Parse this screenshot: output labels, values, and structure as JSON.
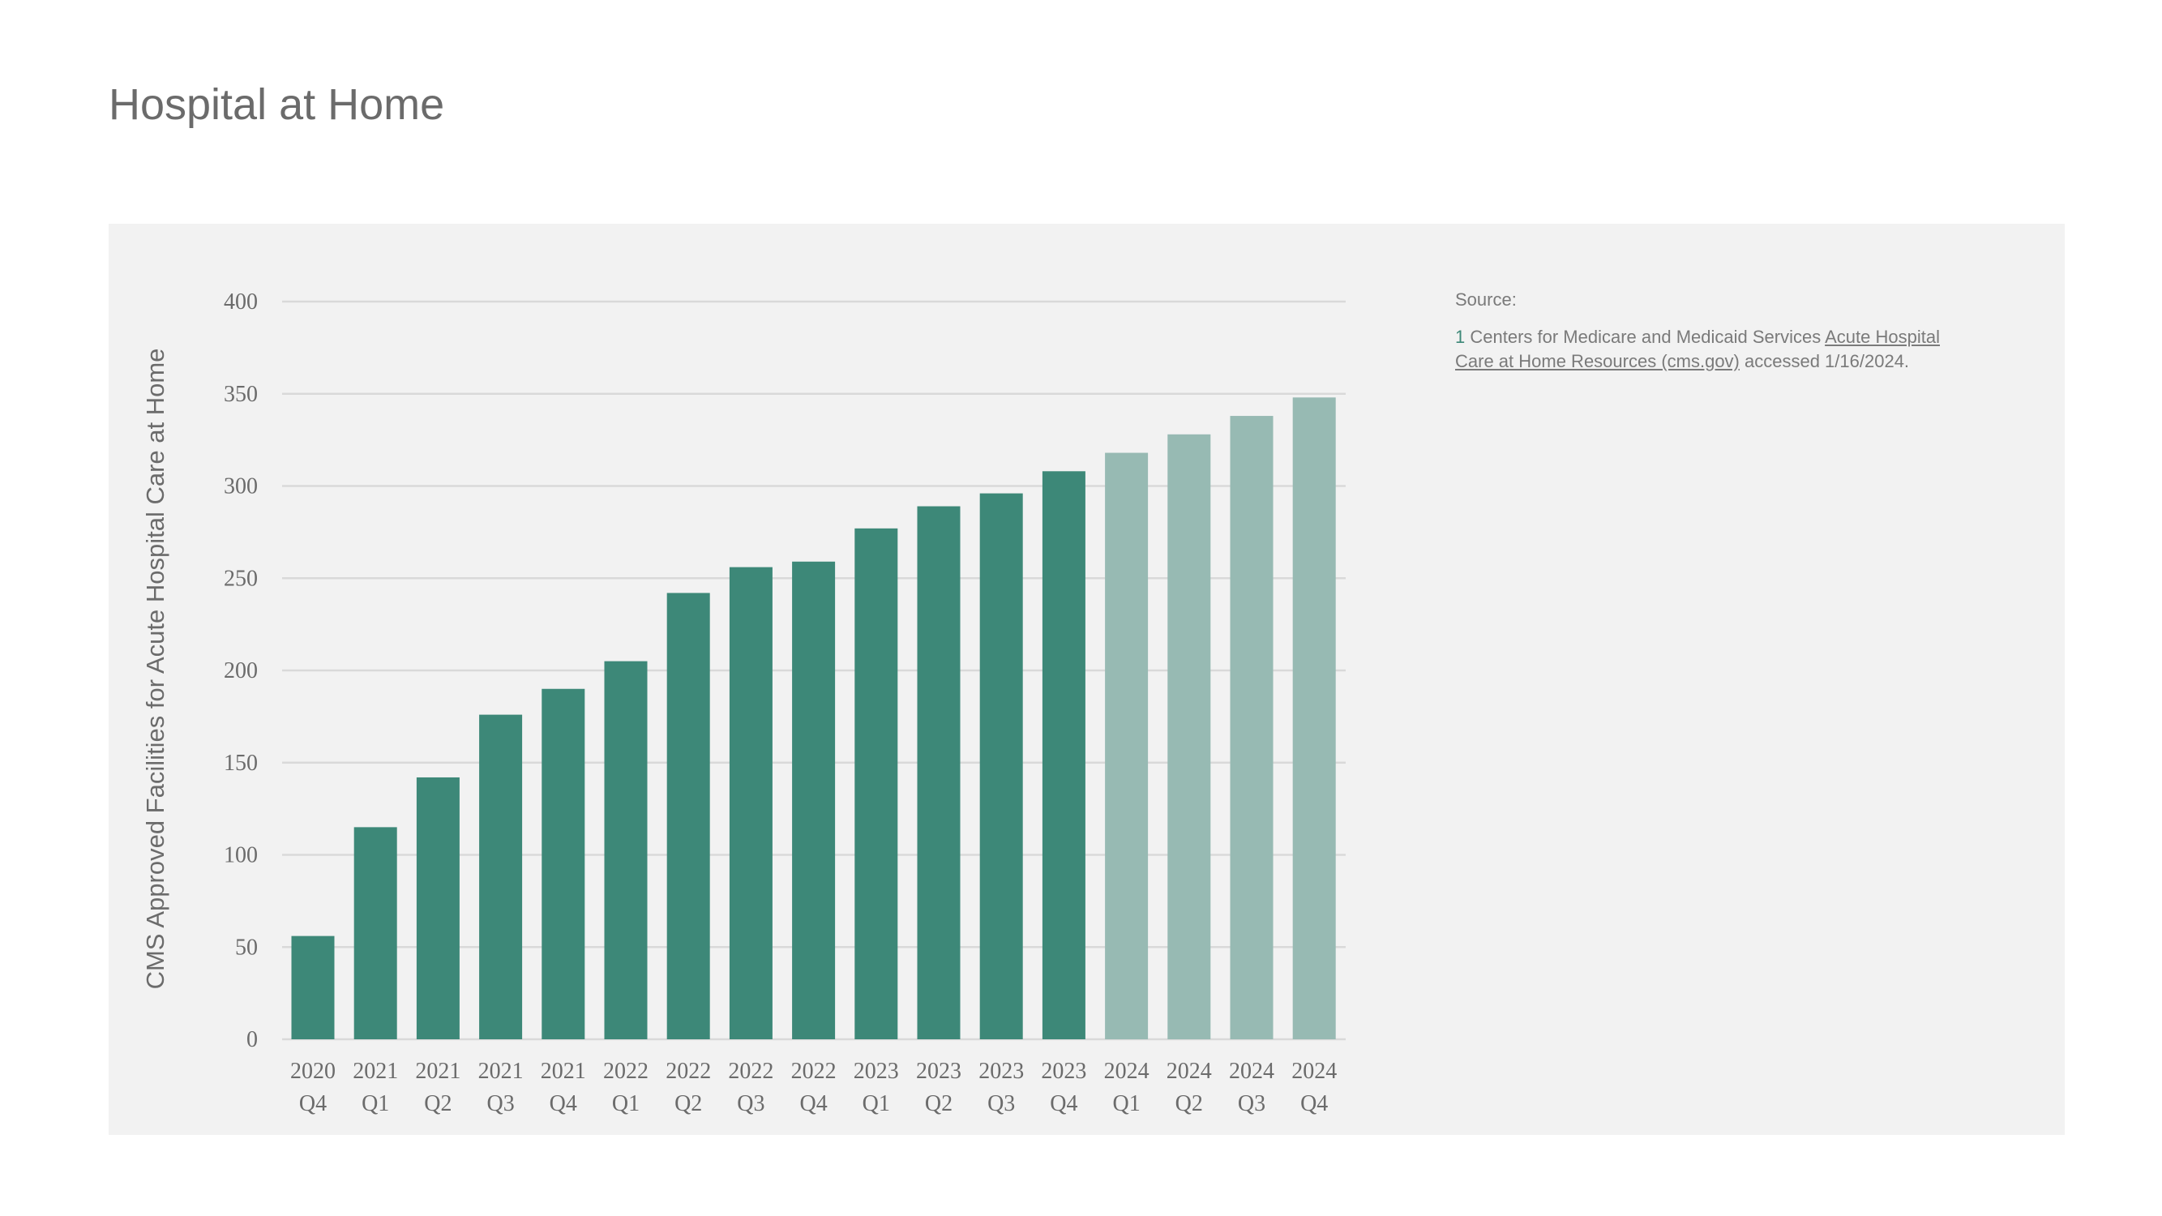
{
  "page": {
    "title": "Hospital at Home"
  },
  "source": {
    "label": "Source:",
    "footnote_number": "1",
    "text_before_link": " Centers for Medicare and Medicaid Services ",
    "link_text": "Acute Hospital Care at Home Resources (cms.gov)",
    "text_after_link": " accessed 1/16/2024."
  },
  "colors": {
    "actual": "#3d8878",
    "projected": "#97bab3",
    "grid": "#d9d9d9",
    "panel": "#f2f2f2"
  },
  "chart_data": {
    "type": "bar",
    "ylabel": "CMS Approved Facilities for Acute Hospital Care at Home",
    "xlabel": "",
    "ylim": [
      0,
      400
    ],
    "yticks": [
      0,
      50,
      100,
      150,
      200,
      250,
      300,
      350,
      400
    ],
    "grid": true,
    "categories": [
      [
        "2020",
        "Q4"
      ],
      [
        "2021",
        "Q1"
      ],
      [
        "2021",
        "Q2"
      ],
      [
        "2021",
        "Q3"
      ],
      [
        "2021",
        "Q4"
      ],
      [
        "2022",
        "Q1"
      ],
      [
        "2022",
        "Q2"
      ],
      [
        "2022",
        "Q3"
      ],
      [
        "2022",
        "Q4"
      ],
      [
        "2023",
        "Q1"
      ],
      [
        "2023",
        "Q2"
      ],
      [
        "2023",
        "Q3"
      ],
      [
        "2023",
        "Q4"
      ],
      [
        "2024",
        "Q1"
      ],
      [
        "2024",
        "Q2"
      ],
      [
        "2024",
        "Q3"
      ],
      [
        "2024",
        "Q4"
      ]
    ],
    "values": [
      56,
      115,
      142,
      176,
      190,
      205,
      242,
      256,
      259,
      277,
      289,
      296,
      308,
      318,
      328,
      338,
      348
    ],
    "projected": [
      false,
      false,
      false,
      false,
      false,
      false,
      false,
      false,
      false,
      false,
      false,
      false,
      false,
      true,
      true,
      true,
      true
    ]
  }
}
